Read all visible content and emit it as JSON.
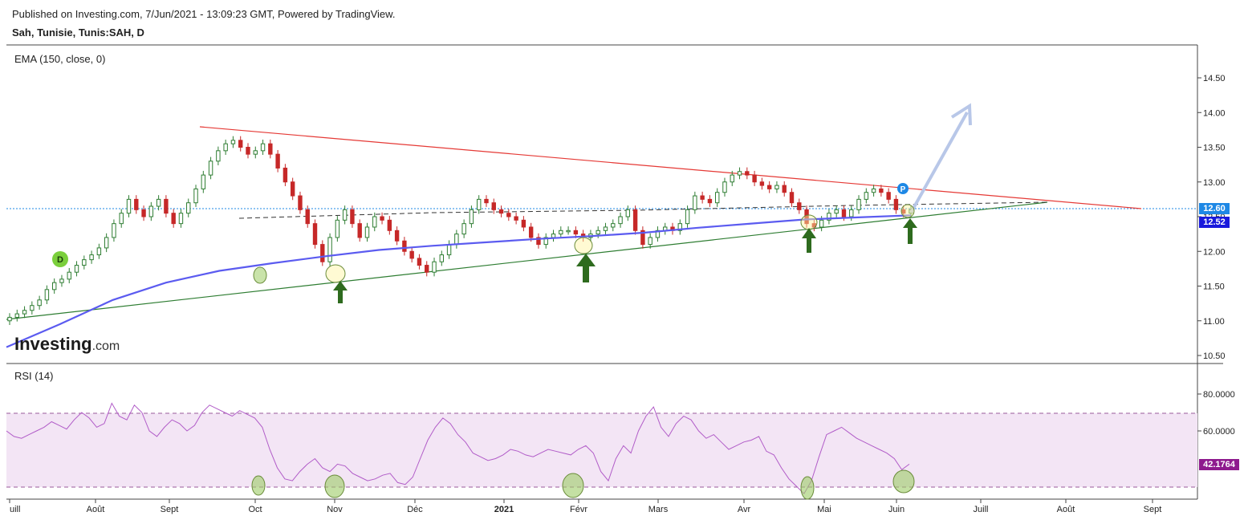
{
  "header": {
    "published": "Published on Investing.com, 7/Jun/2021 - 13:09:23 GMT, Powered by TradingView.",
    "symbol": "Sah, Tunisie, Tunis:SAH, D"
  },
  "panels": {
    "price_label": "EMA (150, close, 0)",
    "rsi_label": "RSI (14)"
  },
  "logo": {
    "main": "Investing",
    "suffix": ".com"
  },
  "price_tags": {
    "last_price": "12.60",
    "ema_value": "12.52",
    "rsi_value": "42.1764"
  },
  "markers": {
    "d_badge": "D",
    "p_badge": "P"
  },
  "colors": {
    "up_candle": "#2e7d32",
    "down_candle": "#c62828",
    "ema": "#5b5bf0",
    "resistance": "#e53935",
    "support": "#2e7d32",
    "rsi_line": "#b15cc8",
    "rsi_band": "#f3e5f5",
    "arrow": "#2e6b1e",
    "projection": "#b8c7e8",
    "last_price_tag": "#1e88e5",
    "ema_tag": "#1a1adc",
    "rsi_tag": "#8e1a8e"
  },
  "chart_data": [
    {
      "type": "candlestick",
      "title": "Sah, Tunisie, Tunis:SAH, D",
      "y_ticks": [
        "10.50",
        "11.00",
        "11.50",
        "12.00",
        "12.50",
        "13.00",
        "13.50",
        "14.00",
        "14.50"
      ],
      "ylim": [
        10.4,
        14.85
      ],
      "x_ticks": [
        "uill",
        "Août",
        "Sept",
        "Oct",
        "Nov",
        "Déc",
        "2021",
        "Févr",
        "Mars",
        "Avr",
        "Mai",
        "Juin",
        "Juill",
        "Août",
        "Sept"
      ],
      "close_series": [
        11.05,
        11.1,
        11.15,
        11.22,
        11.3,
        11.45,
        11.55,
        11.6,
        11.7,
        11.8,
        11.88,
        11.95,
        12.05,
        12.2,
        12.4,
        12.55,
        12.75,
        12.6,
        12.5,
        12.65,
        12.75,
        12.55,
        12.4,
        12.55,
        12.7,
        12.9,
        13.1,
        13.3,
        13.45,
        13.55,
        13.6,
        13.5,
        13.4,
        13.45,
        13.55,
        13.4,
        13.2,
        13.0,
        12.8,
        12.6,
        12.4,
        12.1,
        11.85,
        12.2,
        12.45,
        12.6,
        12.4,
        12.2,
        12.35,
        12.5,
        12.45,
        12.3,
        12.15,
        12.0,
        11.9,
        11.8,
        11.7,
        11.85,
        11.95,
        12.1,
        12.25,
        12.4,
        12.6,
        12.75,
        12.7,
        12.6,
        12.55,
        12.5,
        12.45,
        12.35,
        12.2,
        12.1,
        12.2,
        12.25,
        12.3,
        12.3,
        12.25,
        12.2,
        12.25,
        12.3,
        12.35,
        12.4,
        12.5,
        12.6,
        12.3,
        12.1,
        12.2,
        12.3,
        12.35,
        12.3,
        12.4,
        12.6,
        12.8,
        12.75,
        12.7,
        12.85,
        13.0,
        13.1,
        13.15,
        13.1,
        13.0,
        12.95,
        12.9,
        12.95,
        12.85,
        12.7,
        12.6,
        12.4,
        12.35,
        12.45,
        12.55,
        12.6,
        12.5,
        12.6,
        12.75,
        12.85,
        12.9,
        12.85,
        12.75,
        12.6,
        12.55,
        12.6
      ],
      "ema_150": [
        10.62,
        10.95,
        11.3,
        11.55,
        11.72,
        11.83,
        11.93,
        12.02,
        12.08,
        12.13,
        12.18,
        12.22,
        12.27,
        12.34,
        12.4,
        12.46,
        12.49,
        12.52
      ]
    },
    {
      "type": "line",
      "title": "RSI (14)",
      "y_ticks": [
        "60.0000",
        "80.0000"
      ],
      "ylim": [
        20,
        88
      ],
      "band": [
        30,
        70
      ],
      "values": [
        60,
        57,
        56,
        58,
        60,
        62,
        65,
        63,
        61,
        66,
        70,
        67,
        62,
        64,
        75,
        68,
        66,
        74,
        70,
        60,
        57,
        62,
        66,
        64,
        60,
        63,
        70,
        74,
        72,
        70,
        68,
        71,
        69,
        67,
        62,
        50,
        40,
        34,
        33,
        38,
        42,
        45,
        40,
        38,
        42,
        41,
        37,
        35,
        33,
        34,
        36,
        37,
        32,
        31,
        35,
        45,
        55,
        62,
        67,
        64,
        58,
        54,
        48,
        46,
        44,
        45,
        47,
        50,
        49,
        47,
        46,
        48,
        50,
        49,
        48,
        47,
        50,
        52,
        48,
        38,
        33,
        45,
        52,
        48,
        60,
        68,
        73,
        62,
        57,
        64,
        68,
        66,
        60,
        56,
        58,
        54,
        50,
        52,
        54,
        55,
        57,
        49,
        47,
        40,
        34,
        30,
        26,
        33,
        46,
        58,
        60,
        62,
        59,
        56,
        54,
        52,
        50,
        48,
        45,
        39,
        42
      ]
    }
  ]
}
